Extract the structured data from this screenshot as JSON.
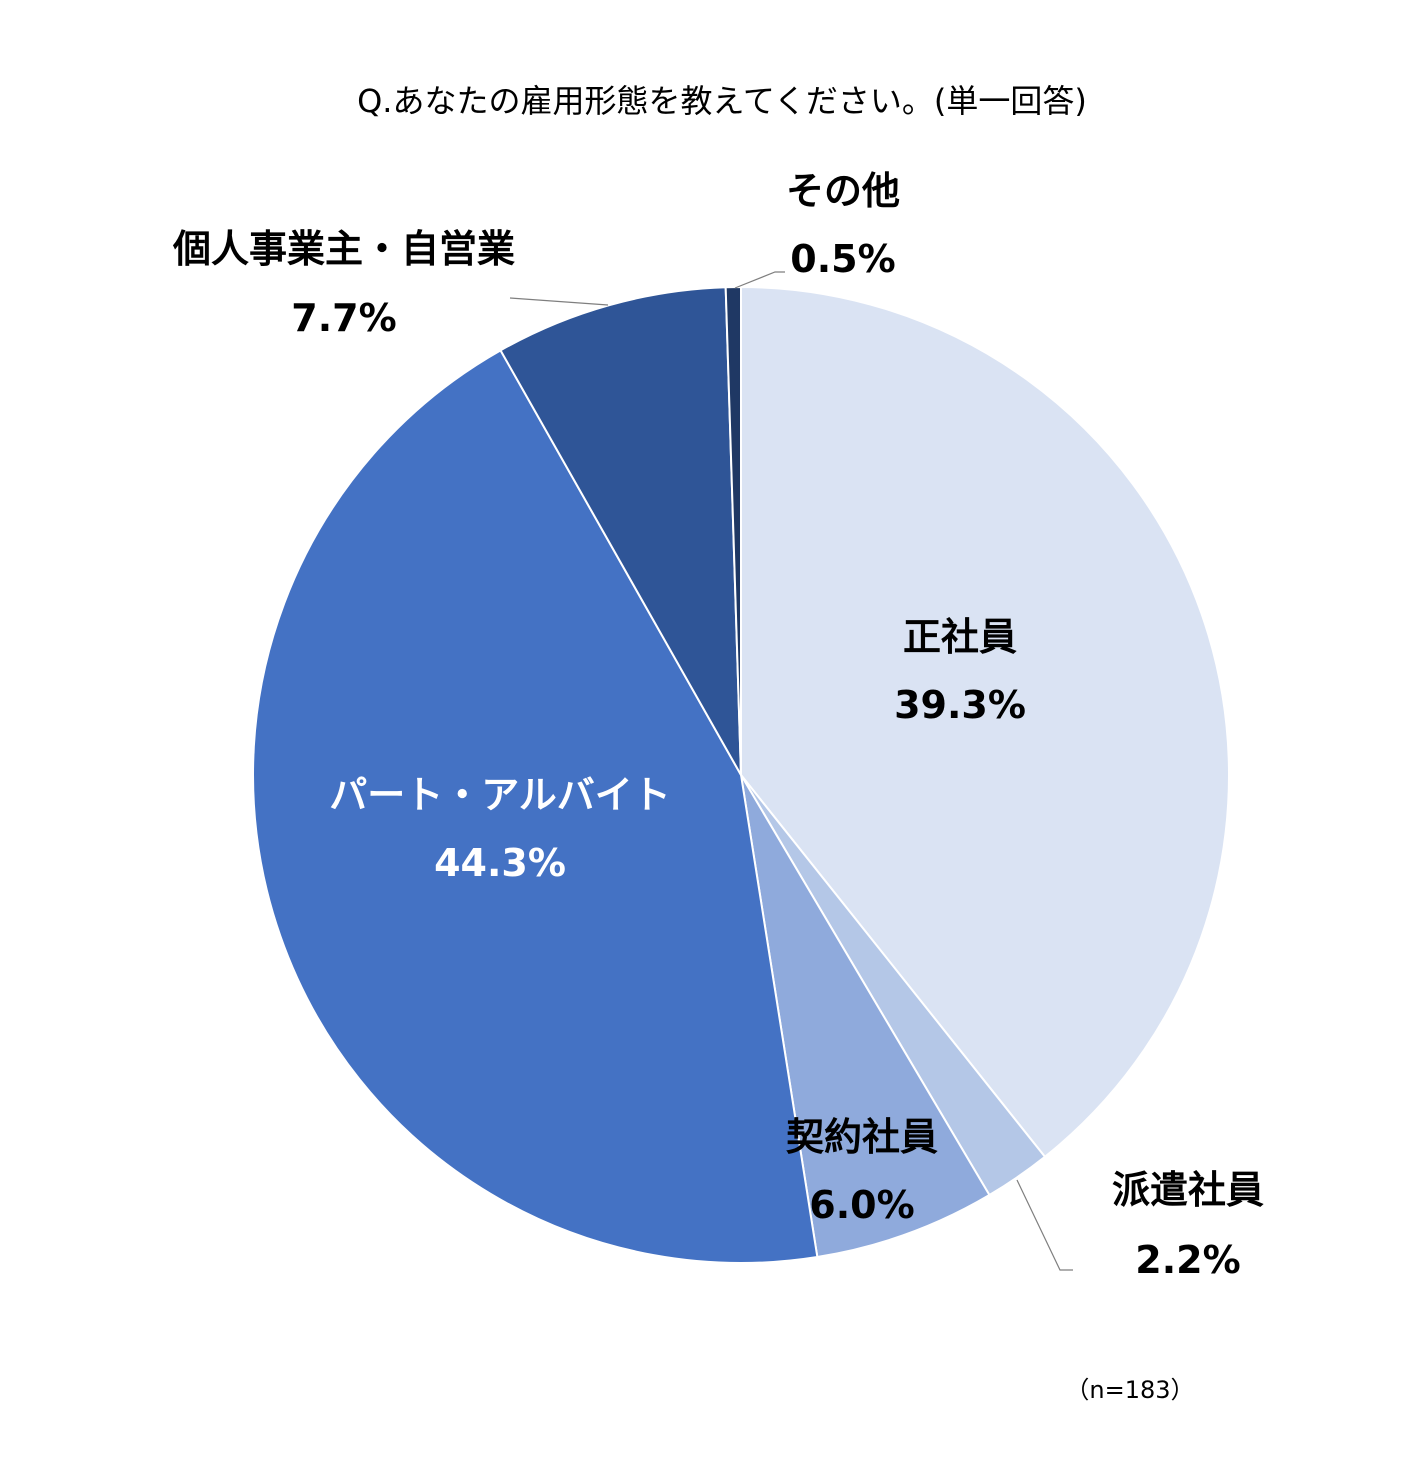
{
  "chart_data": {
    "type": "pie",
    "title": "Q.あなたの雇用形態を教えてください。(単一回答)",
    "note": "（n=183）",
    "unit": "%",
    "slices": [
      {
        "name": "正社員",
        "value": 39.3,
        "label": "39.3%",
        "color": "#dae3f3"
      },
      {
        "name": "派遣社員",
        "value": 2.2,
        "label": "2.2%",
        "color": "#b4c7e7"
      },
      {
        "name": "契約社員",
        "value": 6.0,
        "label": "6.0%",
        "color": "#8faadc"
      },
      {
        "name": "パート・アルバイト",
        "value": 44.3,
        "label": "44.3%",
        "color": "#4472c4"
      },
      {
        "name": "個人事業主・自営業",
        "value": 7.7,
        "label": "7.7%",
        "color": "#2f5597"
      },
      {
        "name": "その他",
        "value": 0.5,
        "label": "0.5%",
        "color": "#1f3864"
      }
    ]
  }
}
